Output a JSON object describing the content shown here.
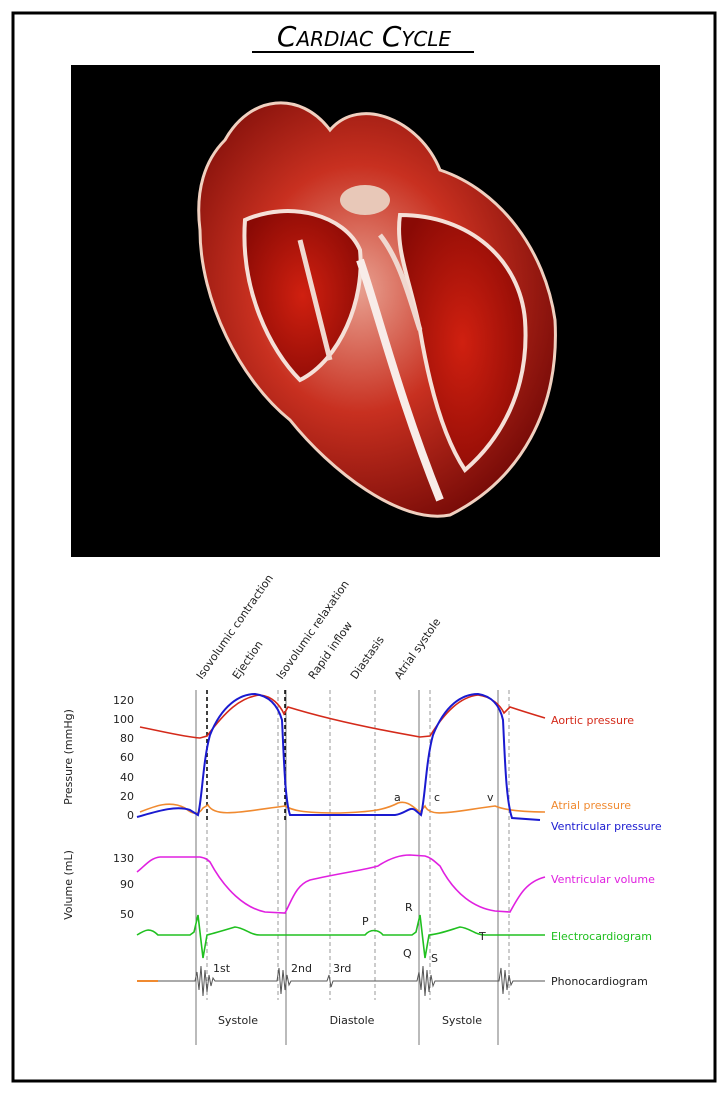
{
  "title": "Cardiac Cycle",
  "diagram": {
    "phases": [
      "Isovolumic contraction",
      "Ejection",
      "Isovolumic relaxation",
      "Rapid inflow",
      "Diastasis",
      "Atrial systole"
    ],
    "pressure_axis": {
      "label": "Pressure (mmHg)",
      "ticks": [
        120,
        100,
        80,
        60,
        40,
        20,
        0
      ]
    },
    "volume_axis": {
      "label": "Volume (mL)",
      "ticks": [
        130,
        90,
        50
      ]
    },
    "curves": [
      "Aortic pressure",
      "Atrial pressure",
      "Ventricular pressure",
      "Ventricular volume",
      "Electrocardiogram",
      "Phonocardiogram"
    ],
    "wave_labels": [
      "a",
      "c",
      "v",
      "P",
      "R",
      "Q",
      "S",
      "T"
    ],
    "heart_sounds": [
      "1st",
      "2nd",
      "3rd"
    ],
    "periods": [
      "Systole",
      "Diastole",
      "Systole"
    ]
  }
}
